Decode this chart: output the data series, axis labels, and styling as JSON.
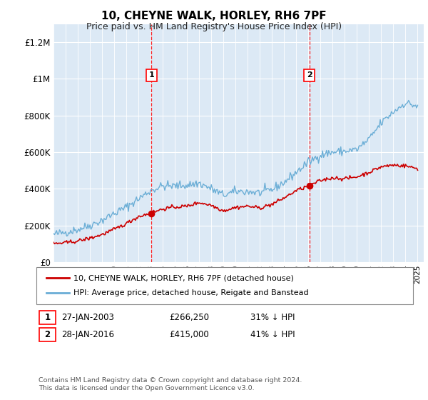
{
  "title": "10, CHEYNE WALK, HORLEY, RH6 7PF",
  "subtitle": "Price paid vs. HM Land Registry's House Price Index (HPI)",
  "xlim_start": 1995,
  "xlim_end": 2025.5,
  "ylim_min": 0,
  "ylim_max": 1300000,
  "yticks": [
    0,
    200000,
    400000,
    600000,
    800000,
    1000000,
    1200000
  ],
  "ytick_labels": [
    "£0",
    "£200K",
    "£400K",
    "£600K",
    "£800K",
    "£1M",
    "£1.2M"
  ],
  "background_color": "#dce9f5",
  "hpi_color": "#6baed6",
  "price_color": "#cc0000",
  "sale1_date": 2003.07,
  "sale1_price": 266250,
  "sale1_label": "1",
  "sale1_year_str": "27-JAN-2003",
  "sale1_price_str": "£266,250",
  "sale1_hpi_str": "31% ↓ HPI",
  "sale2_date": 2016.07,
  "sale2_price": 415000,
  "sale2_label": "2",
  "sale2_year_str": "28-JAN-2016",
  "sale2_price_str": "£415,000",
  "sale2_hpi_str": "41% ↓ HPI",
  "legend_line1": "10, CHEYNE WALK, HORLEY, RH6 7PF (detached house)",
  "legend_line2": "HPI: Average price, detached house, Reigate and Banstead",
  "footnote": "Contains HM Land Registry data © Crown copyright and database right 2024.\nThis data is licensed under the Open Government Licence v3.0.",
  "hpi_base": [
    150000,
    163000,
    178000,
    200000,
    228000,
    265000,
    300000,
    345000,
    390000,
    415000,
    415000,
    420000,
    430000,
    400000,
    365000,
    385000,
    385000,
    378000,
    395000,
    435000,
    490000,
    545000,
    585000,
    600000,
    605000,
    615000,
    670000,
    760000,
    820000,
    870000,
    850000
  ],
  "price_base": [
    100000,
    105000,
    115000,
    130000,
    150000,
    178000,
    210000,
    248000,
    266250,
    290000,
    300000,
    305000,
    325000,
    310000,
    280000,
    298000,
    305000,
    295000,
    315000,
    350000,
    390000,
    415000,
    445000,
    460000,
    455000,
    465000,
    490000,
    520000,
    530000,
    525000,
    510000
  ],
  "year_points": [
    1995,
    1996,
    1997,
    1998,
    1999,
    2000,
    2001,
    2002,
    2003,
    2004,
    2005,
    2006,
    2007,
    2008,
    2009,
    2010,
    2011,
    2012,
    2013,
    2014,
    2015,
    2016,
    2017,
    2018,
    2019,
    2020,
    2021,
    2022,
    2023,
    2024,
    2025
  ]
}
